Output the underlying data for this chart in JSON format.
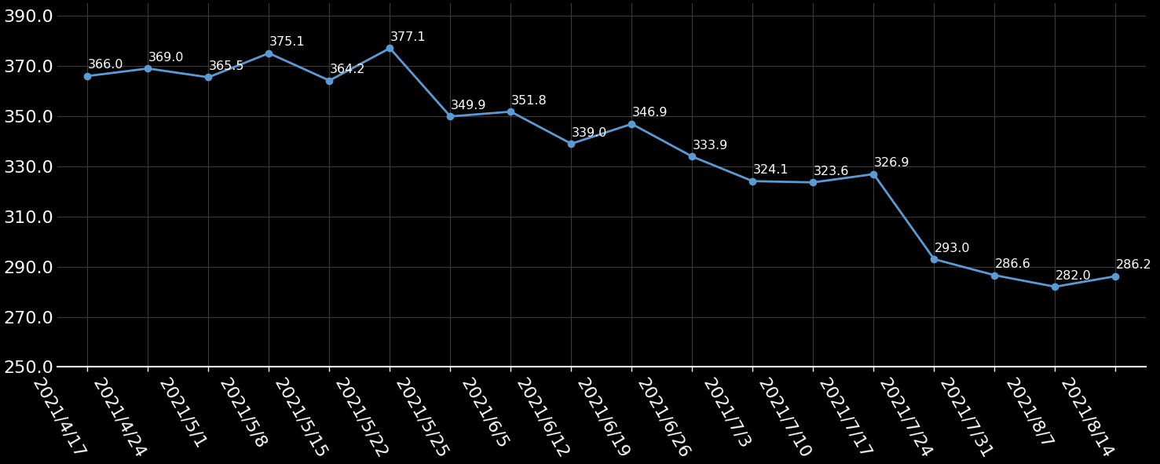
{
  "dates": [
    "2021/4/17",
    "2021/4/24",
    "2021/5/1",
    "2021/5/8",
    "2021/5/15",
    "2021/5/22",
    "2021/5/25",
    "2021/6/5",
    "2021/6/12",
    "2021/6/19",
    "2021/6/26",
    "2021/7/3",
    "2021/7/10",
    "2021/7/17",
    "2021/7/24",
    "2021/7/31",
    "2021/8/7",
    "2021/8/14"
  ],
  "values": [
    366.0,
    369.0,
    365.5,
    375.1,
    364.2,
    377.1,
    349.9,
    351.8,
    339.0,
    346.9,
    333.9,
    324.1,
    323.6,
    326.9,
    293.0,
    286.6,
    282.0,
    286.2
  ],
  "line_color": "#5B9BD5",
  "marker_color": "#5B9BD5",
  "background_color": "#000000",
  "text_color": "#ffffff",
  "grid_color": "#3a3a3a",
  "ylim": [
    250.0,
    395.0
  ],
  "yticks": [
    250.0,
    270.0,
    290.0,
    310.0,
    330.0,
    350.0,
    370.0,
    390.0
  ],
  "label_fontsize": 11.5,
  "tick_fontsize": 16,
  "xlabel_rotation": -60
}
